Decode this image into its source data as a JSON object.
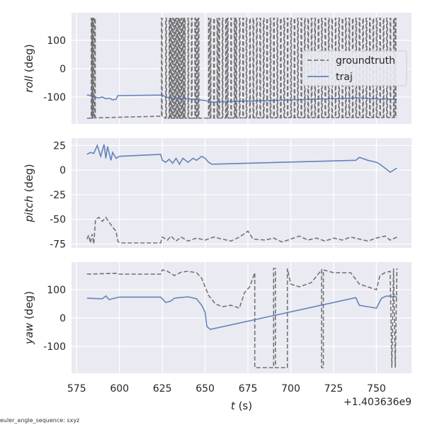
{
  "chart_data": [
    {
      "type": "line",
      "ylabel_italic": "roll",
      "ylabel_unit": " (deg)",
      "ylim": [
        -195,
        197.5
      ],
      "yticks": [
        100,
        0,
        -100
      ],
      "xlim": [
        572,
        770.5
      ],
      "grid": true,
      "legend": {
        "placement": "upper-right",
        "entries": [
          "groundtruth",
          "traj"
        ]
      },
      "series": [
        {
          "name": "groundtruth",
          "style": "dashed",
          "color": "#666666",
          "baseline": [
            [
              581,
              -175
            ],
            [
              598,
              -170
            ],
            [
              600,
              -165
            ],
            [
              624,
              -165
            ],
            [
              626,
              -175
            ],
            [
              700,
              -173
            ],
            [
              762,
              -172
            ]
          ],
          "wrap_to": 178,
          "wrap_times": [
            583.5,
            584,
            584.5,
            585.5,
            624.5,
            627,
            629,
            630,
            631,
            632,
            633,
            634,
            635,
            636,
            637,
            638,
            640,
            642,
            644,
            645,
            646,
            652,
            653,
            655,
            657,
            658,
            660,
            662,
            663,
            665,
            667,
            668,
            670,
            672,
            674,
            676,
            678,
            680,
            682,
            684,
            686,
            688,
            690,
            692,
            694,
            696,
            698,
            700,
            702,
            704,
            706,
            708,
            710,
            712,
            714,
            716,
            718,
            720,
            722,
            724,
            726,
            728,
            730,
            732,
            734,
            736,
            738,
            740,
            742,
            744,
            746,
            748,
            750,
            752,
            754,
            756,
            758,
            760,
            761
          ]
        },
        {
          "name": "traj",
          "style": "solid",
          "color": "#4c72b0",
          "points": [
            [
              581,
              -92
            ],
            [
              583,
              -95
            ],
            [
              585,
              -100
            ],
            [
              588,
              -103
            ],
            [
              590,
              -100
            ],
            [
              592,
              -106
            ],
            [
              594,
              -104
            ],
            [
              596,
              -110
            ],
            [
              598,
              -108
            ],
            [
              599,
              -95
            ],
            [
              625,
              -93
            ],
            [
              627,
              -100
            ],
            [
              632,
              -105
            ],
            [
              640,
              -106
            ],
            [
              650,
              -112
            ],
            [
              653,
              -118
            ],
            [
              700,
              -110
            ],
            [
              740,
              -103
            ],
            [
              750,
              -106
            ],
            [
              762,
              -108
            ]
          ]
        }
      ]
    },
    {
      "type": "line",
      "ylabel_italic": "pitch",
      "ylabel_unit": " (deg)",
      "ylim": [
        -79,
        32.5
      ],
      "yticks": [
        25,
        0,
        -25,
        -50,
        -75
      ],
      "xlim": [
        572,
        770.5
      ],
      "grid": true,
      "series": [
        {
          "name": "groundtruth",
          "style": "dashed",
          "color": "#666666",
          "points": [
            [
              581,
              -70
            ],
            [
              582,
              -66
            ],
            [
              583,
              -74
            ],
            [
              584,
              -65
            ],
            [
              585,
              -75
            ],
            [
              586,
              -50
            ],
            [
              588,
              -48
            ],
            [
              590,
              -52
            ],
            [
              592,
              -48
            ],
            [
              594,
              -53
            ],
            [
              596,
              -58
            ],
            [
              598,
              -62
            ],
            [
              599,
              -72
            ],
            [
              600,
              -74
            ],
            [
              624,
              -74
            ],
            [
              625,
              -68
            ],
            [
              628,
              -71
            ],
            [
              630,
              -67
            ],
            [
              633,
              -72
            ],
            [
              636,
              -68
            ],
            [
              640,
              -72
            ],
            [
              645,
              -69
            ],
            [
              650,
              -71
            ],
            [
              655,
              -68
            ],
            [
              660,
              -70
            ],
            [
              665,
              -72
            ],
            [
              670,
              -68
            ],
            [
              675,
              -62
            ],
            [
              678,
              -70
            ],
            [
              685,
              -71
            ],
            [
              690,
              -69
            ],
            [
              695,
              -73
            ],
            [
              700,
              -70
            ],
            [
              705,
              -67
            ],
            [
              710,
              -71
            ],
            [
              715,
              -69
            ],
            [
              720,
              -72
            ],
            [
              725,
              -69
            ],
            [
              730,
              -71
            ],
            [
              735,
              -68
            ],
            [
              740,
              -70
            ],
            [
              745,
              -72
            ],
            [
              750,
              -69
            ],
            [
              755,
              -67
            ],
            [
              758,
              -71
            ],
            [
              762,
              -68
            ]
          ]
        },
        {
          "name": "traj",
          "style": "solid",
          "color": "#4c72b0",
          "points": [
            [
              581,
              16
            ],
            [
              583,
              18
            ],
            [
              585,
              17
            ],
            [
              587,
              25
            ],
            [
              589,
              14
            ],
            [
              591,
              26
            ],
            [
              592,
              12
            ],
            [
              593,
              24
            ],
            [
              595,
              10
            ],
            [
              596,
              18
            ],
            [
              598,
              12
            ],
            [
              600,
              14
            ],
            [
              624,
              16
            ],
            [
              625,
              10
            ],
            [
              627,
              8
            ],
            [
              629,
              11
            ],
            [
              631,
              7
            ],
            [
              633,
              12
            ],
            [
              635,
              6
            ],
            [
              637,
              12
            ],
            [
              640,
              8
            ],
            [
              643,
              12
            ],
            [
              645,
              10
            ],
            [
              648,
              14
            ],
            [
              650,
              12
            ],
            [
              652,
              8
            ],
            [
              654,
              6
            ],
            [
              738,
              10
            ],
            [
              740,
              13
            ],
            [
              745,
              10
            ],
            [
              750,
              8
            ],
            [
              752,
              6
            ],
            [
              755,
              2
            ],
            [
              758,
              -2
            ],
            [
              760,
              0
            ],
            [
              762,
              2
            ]
          ]
        }
      ]
    },
    {
      "type": "line",
      "ylabel_italic": "yaw",
      "ylabel_unit": " (deg)",
      "ylim": [
        -195,
        197.5
      ],
      "yticks": [
        100,
        0,
        -100
      ],
      "xlim": [
        572,
        770.5
      ],
      "xticks": [
        575,
        600,
        625,
        650,
        675,
        700,
        725,
        750
      ],
      "xlabel_italic": "t",
      "xlabel_unit": " (s)",
      "x_offset_label": "+1.403636e9",
      "grid": true,
      "series": [
        {
          "name": "groundtruth",
          "style": "dashed",
          "color": "#666666",
          "points": [
            [
              581,
              155
            ],
            [
              598,
              158
            ],
            [
              600,
              155
            ],
            [
              624,
              155
            ],
            [
              625,
              170
            ],
            [
              628,
              165
            ],
            [
              632,
              150
            ],
            [
              636,
              162
            ],
            [
              640,
              165
            ],
            [
              645,
              160
            ],
            [
              648,
              140
            ],
            [
              652,
              80
            ],
            [
              656,
              50
            ],
            [
              660,
              40
            ],
            [
              665,
              45
            ],
            [
              670,
              35
            ],
            [
              673,
              90
            ],
            [
              676,
              110
            ],
            [
              679,
              160
            ],
            [
              679,
              -175
            ],
            [
              690,
              -175
            ],
            [
              690,
              175
            ],
            [
              691,
              175
            ],
            [
              691,
              -175
            ],
            [
              698,
              -175
            ],
            [
              698,
              175
            ],
            [
              700,
              120
            ],
            [
              705,
              110
            ],
            [
              712,
              125
            ],
            [
              718,
              170
            ],
            [
              718,
              -175
            ],
            [
              719,
              -175
            ],
            [
              719,
              170
            ],
            [
              725,
              160
            ],
            [
              735,
              160
            ],
            [
              740,
              120
            ],
            [
              745,
              110
            ],
            [
              750,
              100
            ],
            [
              752,
              150
            ],
            [
              755,
              160
            ],
            [
              758,
              165
            ],
            [
              759,
              -175
            ],
            [
              760,
              175
            ],
            [
              761,
              -175
            ],
            [
              762,
              175
            ]
          ]
        },
        {
          "name": "traj",
          "style": "solid",
          "color": "#4c72b0",
          "points": [
            [
              581,
              70
            ],
            [
              590,
              68
            ],
            [
              592,
              78
            ],
            [
              594,
              65
            ],
            [
              597,
              70
            ],
            [
              600,
              74
            ],
            [
              624,
              74
            ],
            [
              627,
              55
            ],
            [
              630,
              60
            ],
            [
              632,
              70
            ],
            [
              640,
              75
            ],
            [
              645,
              68
            ],
            [
              648,
              45
            ],
            [
              650,
              20
            ],
            [
              651,
              -30
            ],
            [
              653,
              -40
            ],
            [
              738,
              72
            ],
            [
              740,
              45
            ],
            [
              745,
              40
            ],
            [
              750,
              35
            ],
            [
              753,
              70
            ],
            [
              756,
              78
            ],
            [
              762,
              75
            ]
          ]
        }
      ]
    }
  ],
  "footer": "euler_angle_sequence: sxyz"
}
